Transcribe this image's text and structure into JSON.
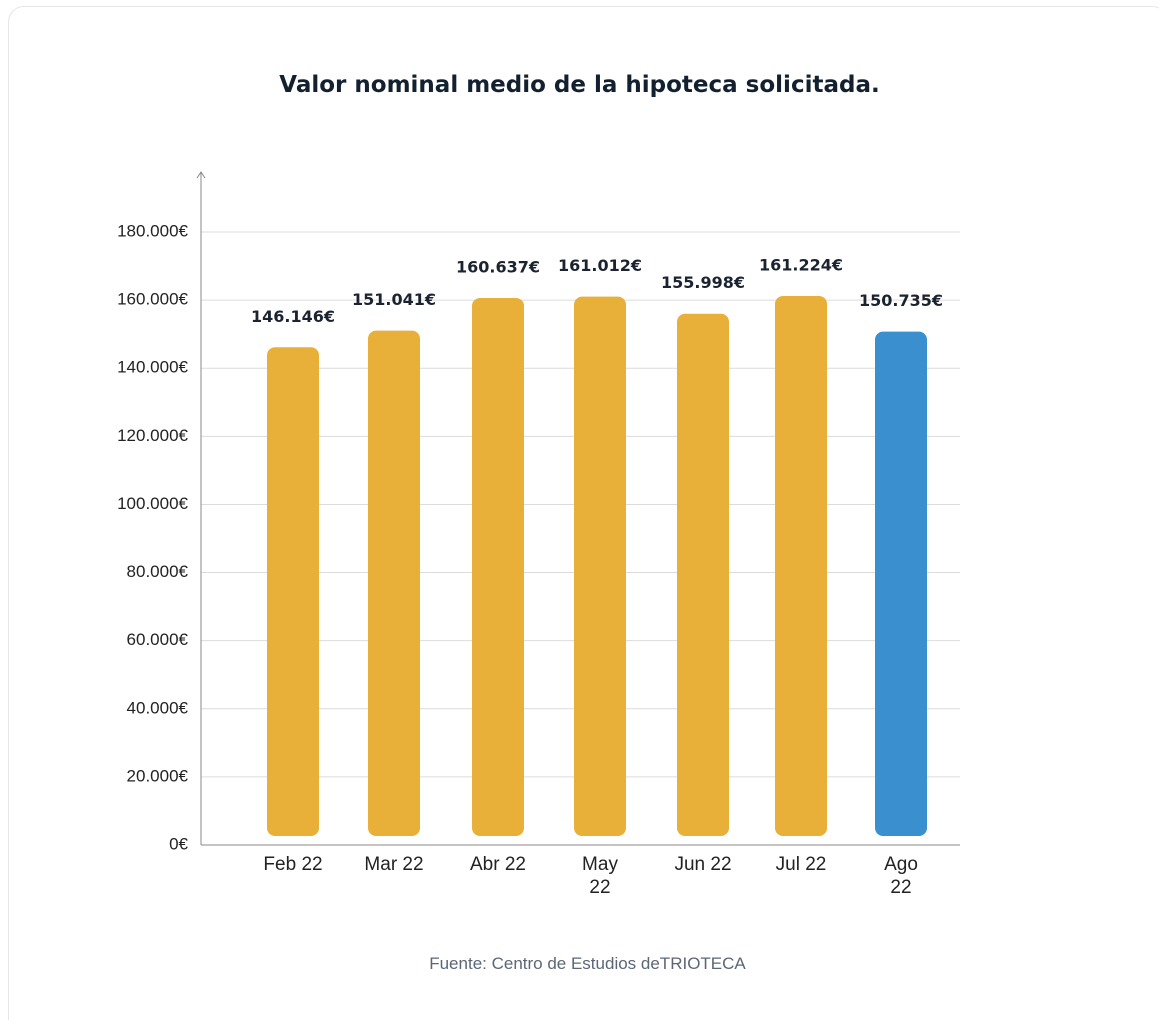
{
  "chart_data": {
    "type": "bar",
    "title": "Valor nominal medio de la hipoteca solicitada.",
    "categories": [
      "Feb 22",
      "Mar 22",
      "Abr 22",
      "May 22",
      "Jun 22",
      "Jul 22",
      "Ago 22"
    ],
    "values": [
      146146,
      151041,
      160637,
      161012,
      155998,
      161224,
      150735
    ],
    "value_labels": [
      "146.146€",
      "151.041€",
      "160.637€",
      "161.012€",
      "155.998€",
      "161.224€",
      "150.735€"
    ],
    "colors": [
      "#e8b038",
      "#e8b038",
      "#e8b038",
      "#e8b038",
      "#e8b038",
      "#e8b038",
      "#3a8fce"
    ],
    "ylim": [
      0,
      180000
    ],
    "yticks": [
      {
        "value": 0,
        "label": "0€"
      },
      {
        "value": 20000,
        "label": "20.000€"
      },
      {
        "value": 40000,
        "label": "40.000€"
      },
      {
        "value": 60000,
        "label": "60.000€"
      },
      {
        "value": 80000,
        "label": "80.000€"
      },
      {
        "value": 100000,
        "label": "100.000€"
      },
      {
        "value": 120000,
        "label": "120.000€"
      },
      {
        "value": 140000,
        "label": "140.000€"
      },
      {
        "value": 160000,
        "label": "160.000€"
      },
      {
        "value": 180000,
        "label": "180.000€"
      }
    ],
    "grid": true,
    "source": "Fuente: Centro de Estudios deTRIOTECA"
  }
}
